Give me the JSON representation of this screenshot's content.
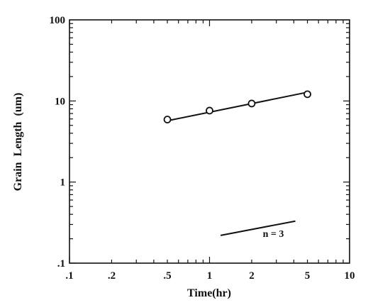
{
  "chart_data": {
    "type": "scatter",
    "xscale": "log",
    "yscale": "log",
    "xlim": [
      0.1,
      10
    ],
    "ylim": [
      0.1,
      100
    ],
    "xlabel": "Time(hr)",
    "ylabel": "Grain  Length  (um)",
    "xticks": [
      0.1,
      0.2,
      0.5,
      1,
      2,
      5,
      10
    ],
    "xtick_labels": [
      ".1",
      ".2",
      ".5",
      "1",
      "2",
      "5",
      "10"
    ],
    "yticks": [
      0.1,
      1,
      10,
      100
    ],
    "ytick_labels": [
      ".1",
      "1",
      "10",
      "100"
    ],
    "grid": false,
    "series": [
      {
        "marker": "open-circle",
        "x": [
          0.5,
          1,
          2,
          5
        ],
        "y": [
          5.9,
          7.6,
          9.3,
          12.1
        ]
      }
    ],
    "fit_line": {
      "x": [
        0.5,
        5
      ],
      "y": [
        5.7,
        12.8
      ]
    },
    "reference_line": {
      "x": [
        1.2,
        4.1
      ],
      "y": [
        0.22,
        0.33
      ]
    },
    "annotations": [
      {
        "text": "n = 3",
        "x": 2.4,
        "y": 0.21
      }
    ]
  }
}
